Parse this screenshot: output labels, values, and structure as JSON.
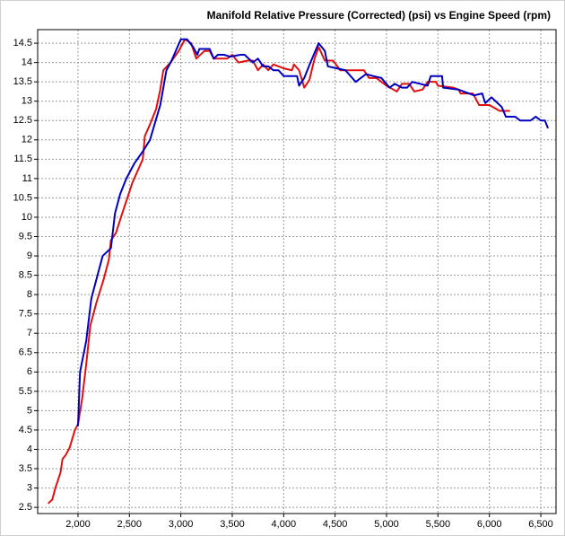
{
  "chart_data": {
    "type": "line",
    "title": "Manifold Relative Pressure (Corrected) (psi) vs Engine Speed (rpm)",
    "xlim": [
      1608,
      6648
    ],
    "ylim": [
      2.34,
      14.85
    ],
    "xticks": [
      {
        "value": 2000,
        "label": "2,000"
      },
      {
        "value": 2500,
        "label": "2,500"
      },
      {
        "value": 3000,
        "label": "3,000"
      },
      {
        "value": 3500,
        "label": "3,500"
      },
      {
        "value": 4000,
        "label": "4,000"
      },
      {
        "value": 4500,
        "label": "4,500"
      },
      {
        "value": 5000,
        "label": "5,000"
      },
      {
        "value": 5500,
        "label": "5,500"
      },
      {
        "value": 6000,
        "label": "6,000"
      },
      {
        "value": 6500,
        "label": "6,500"
      }
    ],
    "yticks": [
      2.5,
      3,
      3.5,
      4,
      4.5,
      5,
      5.5,
      6,
      6.5,
      7,
      7.5,
      8,
      8.5,
      9,
      9.5,
      10,
      10.5,
      11,
      11.5,
      12,
      12.5,
      13,
      13.5,
      14,
      14.5
    ],
    "grid": true,
    "series": [
      {
        "color": "#e01010",
        "x": [
          1710,
          1750,
          1780,
          1830,
          1850,
          1880,
          1920,
          1970,
          2000,
          2040,
          2080,
          2120,
          2180,
          2250,
          2300,
          2320,
          2370,
          2430,
          2480,
          2530,
          2580,
          2630,
          2650,
          2700,
          2760,
          2800,
          2830,
          2900,
          2980,
          3040,
          3100,
          3150,
          3230,
          3280,
          3320,
          3450,
          3500,
          3560,
          3650,
          3700,
          3750,
          3800,
          3850,
          3900,
          4000,
          4080,
          4100,
          4150,
          4200,
          4250,
          4300,
          4340,
          4400,
          4480,
          4550,
          4780,
          4830,
          4900,
          5000,
          5100,
          5150,
          5220,
          5270,
          5350,
          5400,
          5480,
          5500,
          5650,
          5700,
          5720,
          5840,
          5900,
          6000,
          6100,
          6200
        ],
        "values": [
          2.6,
          2.7,
          3.0,
          3.4,
          3.75,
          3.85,
          4.05,
          4.5,
          4.65,
          5.3,
          6.2,
          7.2,
          7.8,
          8.4,
          8.9,
          9.4,
          9.6,
          10.1,
          10.5,
          10.9,
          11.2,
          11.5,
          12.1,
          12.4,
          12.8,
          13.3,
          13.8,
          14.0,
          14.3,
          14.6,
          14.5,
          14.1,
          14.3,
          14.3,
          14.1,
          14.1,
          14.2,
          14.0,
          14.05,
          14.05,
          13.8,
          13.95,
          13.8,
          13.95,
          13.85,
          13.8,
          13.95,
          13.8,
          13.35,
          13.55,
          14.1,
          14.4,
          14.05,
          14.05,
          13.8,
          13.8,
          13.6,
          13.6,
          13.4,
          13.25,
          13.45,
          13.45,
          13.25,
          13.3,
          13.5,
          13.5,
          13.4,
          13.35,
          13.3,
          13.2,
          13.2,
          12.9,
          12.9,
          12.75,
          12.75
        ]
      },
      {
        "color": "#0000c0",
        "x": [
          2000,
          2020,
          2080,
          2130,
          2240,
          2320,
          2360,
          2410,
          2470,
          2550,
          2630,
          2700,
          2800,
          2860,
          2910,
          3000,
          3060,
          3120,
          3160,
          3180,
          3280,
          3320,
          3360,
          3420,
          3480,
          3580,
          3620,
          3700,
          3750,
          3800,
          3850,
          3900,
          3950,
          4000,
          4130,
          4150,
          4200,
          4260,
          4340,
          4400,
          4430,
          4600,
          4650,
          4700,
          4800,
          4870,
          4950,
          5030,
          5080,
          5150,
          5200,
          5250,
          5400,
          5430,
          5540,
          5550,
          5700,
          5800,
          5850,
          5930,
          5960,
          6020,
          6120,
          6160,
          6250,
          6300,
          6400,
          6450,
          6500,
          6540,
          6570
        ],
        "values": [
          4.6,
          6.0,
          6.8,
          7.9,
          9.0,
          9.2,
          10.1,
          10.6,
          11.0,
          11.4,
          11.7,
          12.0,
          12.9,
          13.8,
          14.05,
          14.6,
          14.6,
          14.4,
          14.2,
          14.35,
          14.35,
          14.1,
          14.2,
          14.2,
          14.15,
          14.2,
          14.2,
          14.0,
          14.1,
          13.9,
          13.9,
          13.8,
          13.8,
          13.65,
          13.65,
          13.4,
          13.6,
          14.0,
          14.5,
          14.3,
          13.9,
          13.8,
          13.65,
          13.5,
          13.7,
          13.65,
          13.6,
          13.35,
          13.45,
          13.35,
          13.35,
          13.5,
          13.4,
          13.65,
          13.65,
          13.35,
          13.3,
          13.2,
          13.15,
          13.2,
          12.95,
          13.1,
          12.85,
          12.6,
          12.6,
          12.5,
          12.5,
          12.6,
          12.5,
          12.5,
          12.3
        ]
      }
    ]
  }
}
